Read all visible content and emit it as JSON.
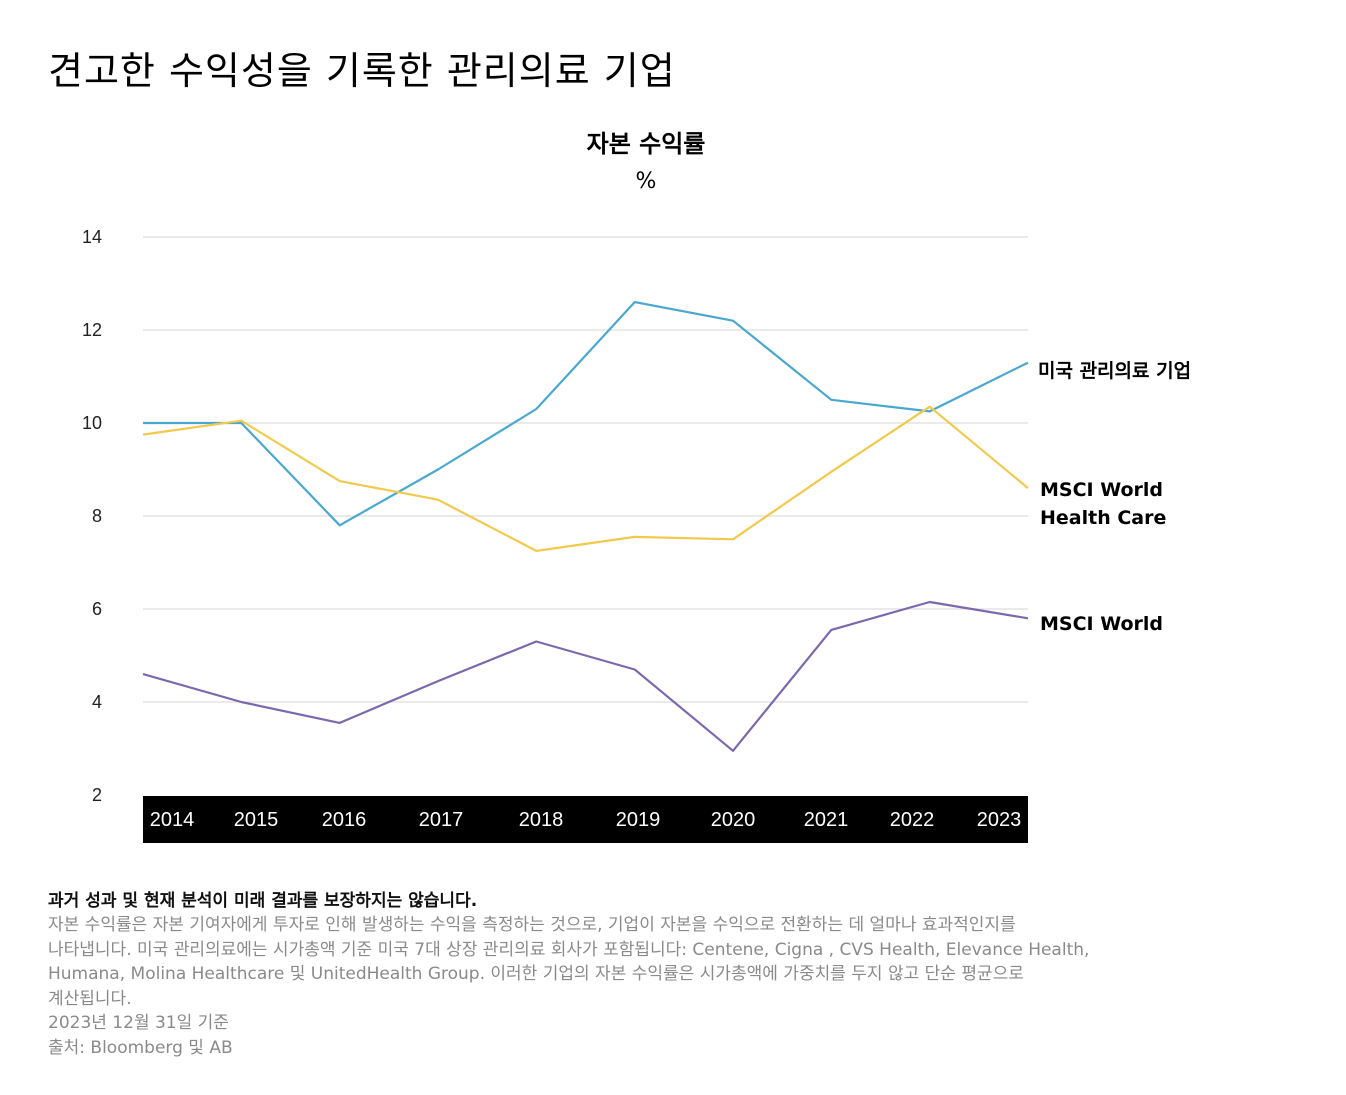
{
  "page": {
    "title": "견고한 수익성을 기록한 관리의료 기업"
  },
  "chart_data": {
    "type": "line",
    "title": "자본 수익률",
    "unit": "%",
    "x": [
      "2014",
      "2015",
      "2016",
      "2017",
      "2018",
      "2019",
      "2020",
      "2021",
      "2022",
      "2023"
    ],
    "yticks": [
      14,
      12,
      10,
      8,
      6,
      4,
      2
    ],
    "ylim": [
      2,
      14
    ],
    "grid": true,
    "legend": "direct-labels-right",
    "series": [
      {
        "name": "미국 관리의료 기업",
        "color": "#4aa8d0",
        "values": [
          10.0,
          10.0,
          7.8,
          9.0,
          10.3,
          12.6,
          12.2,
          10.5,
          10.25,
          11.3
        ]
      },
      {
        "name": "MSCI World Health Care",
        "label_lines": [
          "MSCI World",
          "Health Care"
        ],
        "color": "#f2c94c",
        "values": [
          9.75,
          10.05,
          8.75,
          8.35,
          7.25,
          7.55,
          7.5,
          8.95,
          10.35,
          8.6
        ]
      },
      {
        "name": "MSCI World",
        "color": "#7b68ae",
        "values": [
          4.6,
          4.0,
          3.55,
          4.45,
          5.3,
          4.7,
          2.95,
          5.55,
          6.15,
          5.8
        ]
      }
    ]
  },
  "notes": {
    "disclaimer": "과거 성과 및 현재 분석이 미래 결과를 보장하지는 않습니다.",
    "lines": [
      "자본 수익률은 자본 기여자에게 투자로 인해 발생하는 수익을 측정하는 것으로, 기업이 자본을 수익으로 전환하는 데 얼마나 효과적인지를",
      "나타냅니다. 미국 관리의료에는 시가총액 기준 미국 7대 상장 관리의료 회사가 포함됩니다: Centene, Cigna , CVS Health, Elevance Health,",
      "Humana, Molina Healthcare 및 UnitedHealth Group. 이러한 기업의 자본 수익률은 시가총액에 가중치를 두지 않고 단순 평균으로",
      "계산됩니다.",
      "2023년 12월 31일 기준",
      "출처: Bloomberg 및 AB"
    ]
  }
}
